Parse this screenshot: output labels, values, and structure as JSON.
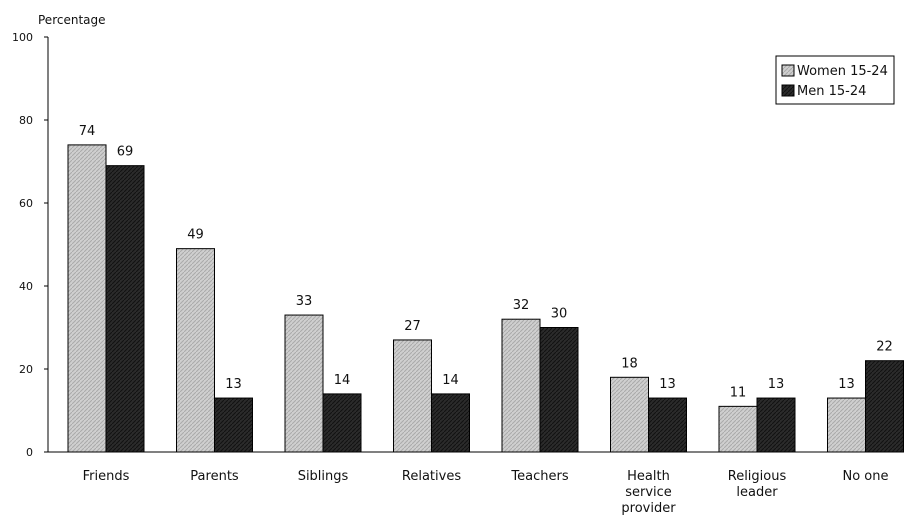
{
  "chart_data": {
    "type": "bar",
    "title": "",
    "ylabel": "Percentage",
    "xlabel": "",
    "ylim": [
      0,
      100
    ],
    "yticks": [
      0,
      20,
      40,
      60,
      80,
      100
    ],
    "grid": false,
    "legend_position": "top-right",
    "categories": [
      [
        "Friends"
      ],
      [
        "Parents"
      ],
      [
        "Siblings"
      ],
      [
        "Relatives"
      ],
      [
        "Teachers"
      ],
      [
        "Health",
        "service",
        "provider"
      ],
      [
        "Religious",
        "leader"
      ],
      [
        "No one"
      ]
    ],
    "series": [
      {
        "name": "Women 15-24",
        "values": [
          74,
          49,
          33,
          27,
          32,
          18,
          11,
          13
        ],
        "color": "#c8c8c8",
        "pattern": "light-hatch"
      },
      {
        "name": "Men 15-24",
        "values": [
          69,
          13,
          14,
          14,
          30,
          13,
          13,
          22
        ],
        "color": "#222222",
        "pattern": "dark-hatch"
      }
    ]
  }
}
